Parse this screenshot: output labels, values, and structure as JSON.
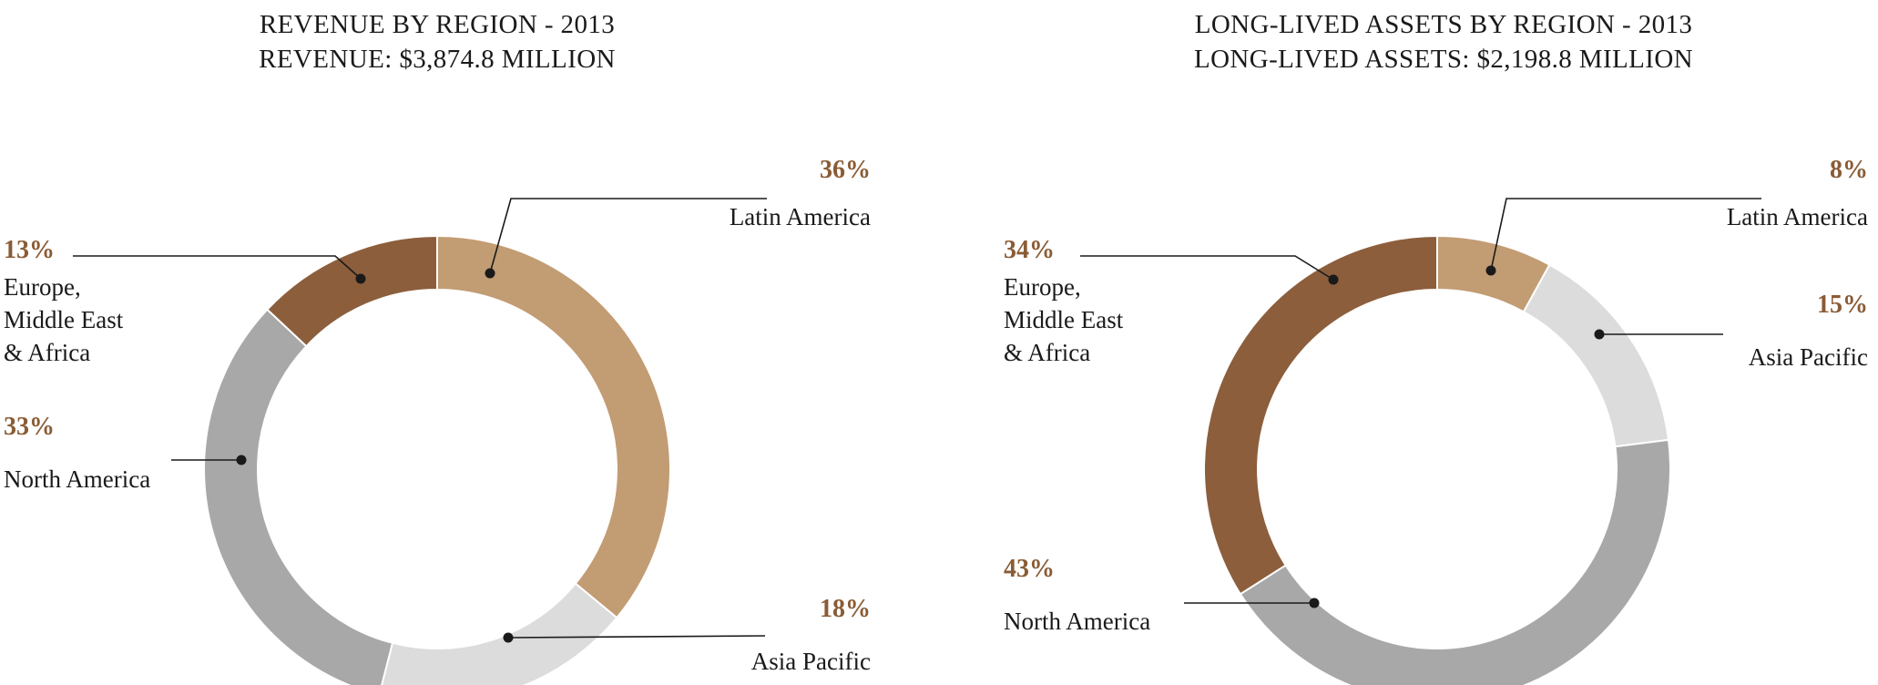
{
  "theme": {
    "background": "#ffffff",
    "text_color": "#1a1a1a",
    "percent_color": "#8a5c35",
    "line_color": "#1a1a1a",
    "segment_seam_color": "#ffffff"
  },
  "chart_data": [
    {
      "type": "pie",
      "subtype": "donut",
      "title": "REVENUE BY REGION - 2013",
      "subtitle": "REVENUE: $3,874.8 MILLION",
      "total": "$3,874.8 MILLION",
      "unit": "percent",
      "direction": "clockwise",
      "start_angle_deg": 0,
      "categories": [
        "Latin America",
        "Asia Pacific",
        "North America",
        "Europe, Middle East & Africa"
      ],
      "values": [
        36,
        18,
        33,
        13
      ],
      "colors": [
        "#c29c73",
        "#dcdcdc",
        "#a8a8a8",
        "#8c5e3c"
      ],
      "callouts": {
        "latin_america": {
          "pct": "36%",
          "line1": "Latin America"
        },
        "emea": {
          "pct": "13%",
          "line1": "Europe,",
          "line2": "Middle East",
          "line3": "& Africa"
        },
        "north_america": {
          "pct": "33%",
          "line1": "North America"
        },
        "asia_pacific": {
          "pct": "18%",
          "line1": "Asia Pacific"
        }
      }
    },
    {
      "type": "pie",
      "subtype": "donut",
      "title": "LONG-LIVED ASSETS BY REGION - 2013",
      "subtitle": "LONG-LIVED ASSETS: $2,198.8 MILLION",
      "total": "$2,198.8 MILLION",
      "unit": "percent",
      "direction": "clockwise",
      "start_angle_deg": 0,
      "categories": [
        "Latin America",
        "Asia Pacific",
        "North America",
        "Europe, Middle East & Africa"
      ],
      "values": [
        8,
        15,
        43,
        34
      ],
      "colors": [
        "#c29c73",
        "#dcdcdc",
        "#a8a8a8",
        "#8c5e3c"
      ],
      "callouts": {
        "latin_america": {
          "pct": "8%",
          "line1": "Latin America"
        },
        "asia_pacific": {
          "pct": "15%",
          "line1": "Asia Pacific"
        },
        "emea": {
          "pct": "34%",
          "line1": "Europe,",
          "line2": "Middle East",
          "line3": "& Africa"
        },
        "north_america": {
          "pct": "43%",
          "line1": "North America"
        }
      }
    }
  ]
}
